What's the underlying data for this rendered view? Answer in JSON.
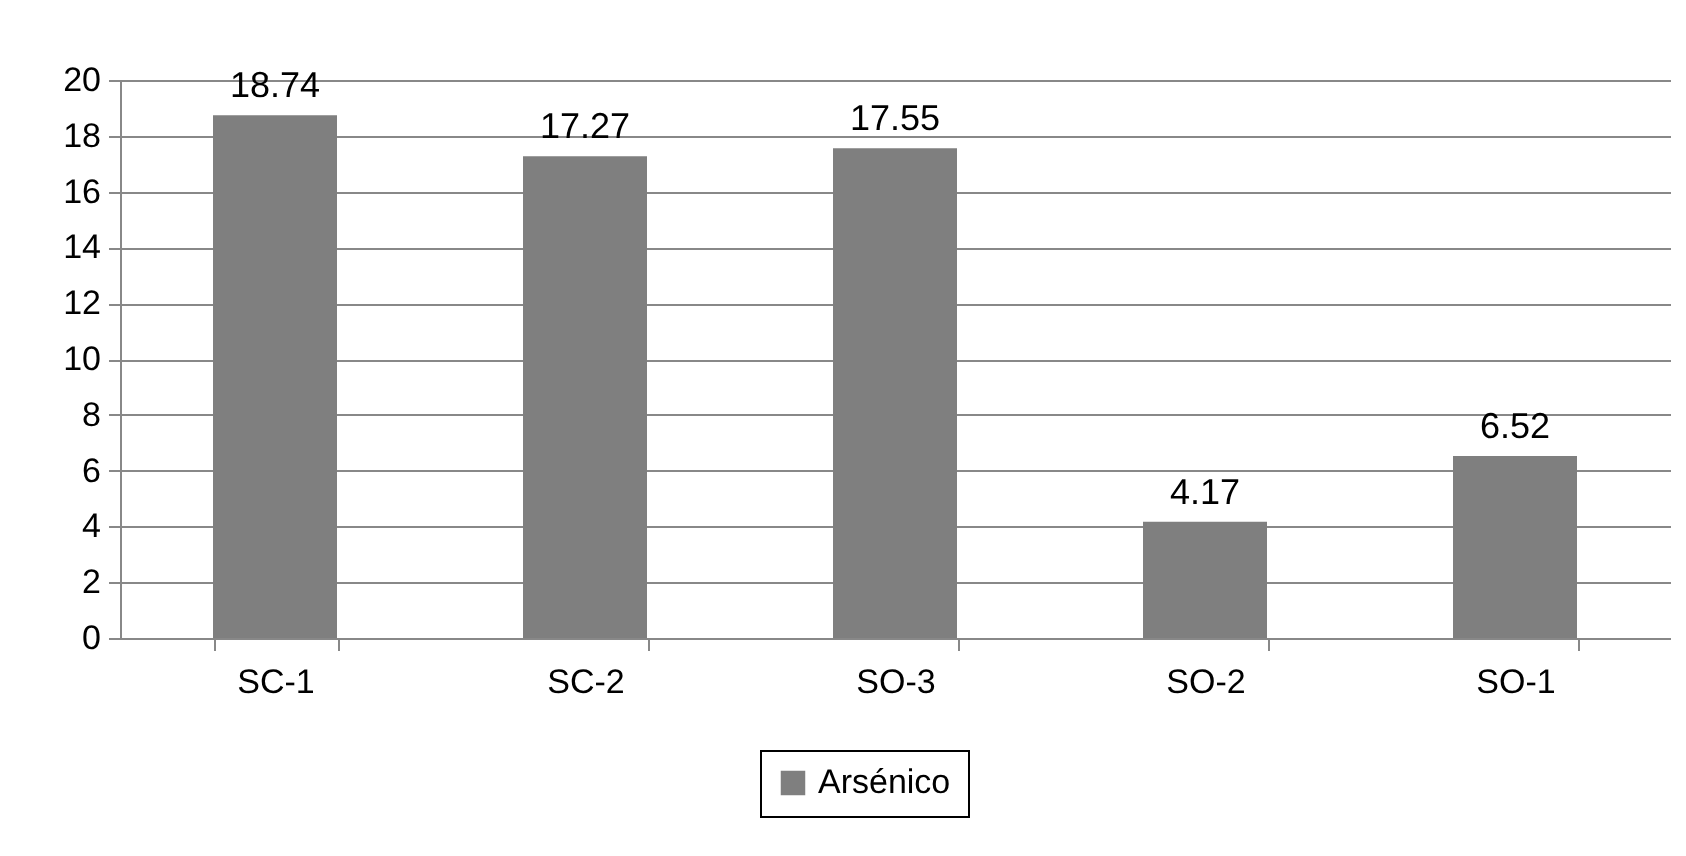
{
  "chart_data": {
    "type": "bar",
    "categories": [
      "SC-1",
      "SC-2",
      "SO-3",
      "SO-2",
      "SO-1"
    ],
    "series": [
      {
        "name": "Arsénico",
        "color": "#7f7f7f",
        "values": [
          18.74,
          17.27,
          17.55,
          4.17,
          6.52
        ]
      }
    ],
    "ylim": [
      0,
      20
    ],
    "yticks": [
      0,
      2,
      4,
      6,
      8,
      10,
      12,
      14,
      16,
      18,
      20
    ],
    "grid": "y",
    "legend": "bottom",
    "data_labels": true
  }
}
